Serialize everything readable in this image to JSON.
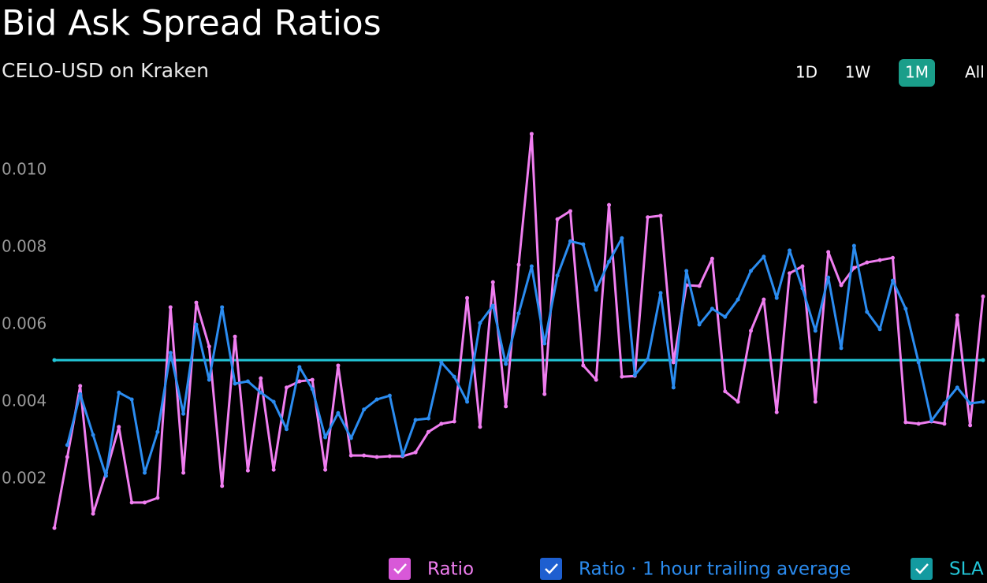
{
  "chart_data": {
    "type": "line",
    "title": "Bid Ask Spread Ratios",
    "subtitle": "CELO-USD on Kraken",
    "range_buttons": [
      "1D",
      "1W",
      "1M",
      "All"
    ],
    "selected_range": 2,
    "ylim": [
      0.0004,
      0.0116
    ],
    "yticks": [
      0.002,
      0.004,
      0.006,
      0.008,
      {
        "value": 0.01,
        "label": "0.010"
      }
    ],
    "series": [
      {
        "name": "Ratio",
        "color": "#f07ef0",
        "markers": true,
        "values": [
          0.00073,
          0.00257,
          0.00441,
          0.0011,
          0.00216,
          0.00335,
          0.00139,
          0.00139,
          0.00151,
          0.00645,
          0.00216,
          0.00657,
          0.00543,
          0.00182,
          0.00569,
          0.00222,
          0.00461,
          0.00224,
          0.00437,
          0.00453,
          0.00457,
          0.00224,
          0.00494,
          0.00261,
          0.00261,
          0.00257,
          0.00259,
          0.00259,
          0.00269,
          0.00322,
          0.00343,
          0.00349,
          0.00669,
          0.00335,
          0.0071,
          0.00388,
          0.00755,
          0.01094,
          0.0042,
          0.00873,
          0.00894,
          0.00494,
          0.00457,
          0.0091,
          0.00465,
          0.00467,
          0.00878,
          0.00882,
          0.00502,
          0.00702,
          0.007,
          0.00771,
          0.00427,
          0.004,
          0.00584,
          0.00665,
          0.00373,
          0.00733,
          0.00751,
          0.004,
          0.00788,
          0.00702,
          0.00747,
          0.00761,
          0.00767,
          0.00773,
          0.00347,
          0.00343,
          0.00349,
          0.00343,
          0.00624,
          0.00339,
          0.00673
        ]
      },
      {
        "name": "Ratio · 1 hour trailing average",
        "color": "#2b8cf0",
        "markers": true,
        "values": [
          null,
          0.00288,
          0.0042,
          0.00314,
          0.00208,
          0.00424,
          0.00406,
          0.00216,
          0.00322,
          0.00527,
          0.00369,
          0.006,
          0.00457,
          0.00645,
          0.00447,
          0.00453,
          0.00424,
          0.004,
          0.00329,
          0.0049,
          0.00433,
          0.00308,
          0.00371,
          0.00306,
          0.0038,
          0.00406,
          0.00416,
          0.00261,
          0.00353,
          0.00357,
          0.00502,
          0.00465,
          0.004,
          0.00604,
          0.00649,
          0.00498,
          0.00629,
          0.00751,
          0.00551,
          0.00727,
          0.00816,
          0.00808,
          0.0069,
          0.00763,
          0.00824,
          0.00469,
          0.0051,
          0.00682,
          0.00437,
          0.00739,
          0.006,
          0.00641,
          0.0062,
          0.00665,
          0.00739,
          0.00776,
          0.00669,
          0.00792,
          0.00694,
          0.00584,
          0.00722,
          0.00539,
          0.00804,
          0.00633,
          0.00588,
          0.00714,
          0.00641,
          0.00502,
          0.00351,
          0.00396,
          0.00437,
          0.00396,
          0.004
        ]
      },
      {
        "name": "SLA",
        "color": "#22c6d8",
        "markers": false,
        "values": [
          0.00508,
          0.00508,
          0.00508,
          0.00508,
          0.00508,
          0.00508,
          0.00508,
          0.00508,
          0.00508,
          0.00508,
          0.00508,
          0.00508,
          0.00508,
          0.00508,
          0.00508,
          0.00508,
          0.00508,
          0.00508,
          0.00508,
          0.00508,
          0.00508,
          0.00508,
          0.00508,
          0.00508,
          0.00508,
          0.00508,
          0.00508,
          0.00508,
          0.00508,
          0.00508,
          0.00508,
          0.00508,
          0.00508,
          0.00508,
          0.00508,
          0.00508,
          0.00508,
          0.00508,
          0.00508,
          0.00508,
          0.00508,
          0.00508,
          0.00508,
          0.00508,
          0.00508,
          0.00508,
          0.00508,
          0.00508,
          0.00508,
          0.00508,
          0.00508,
          0.00508,
          0.00508,
          0.00508,
          0.00508,
          0.00508,
          0.00508,
          0.00508,
          0.00508,
          0.00508,
          0.00508,
          0.00508,
          0.00508,
          0.00508,
          0.00508,
          0.00508,
          0.00508,
          0.00508,
          0.00508,
          0.00508,
          0.00508,
          0.00508,
          0.00508
        ]
      }
    ]
  }
}
